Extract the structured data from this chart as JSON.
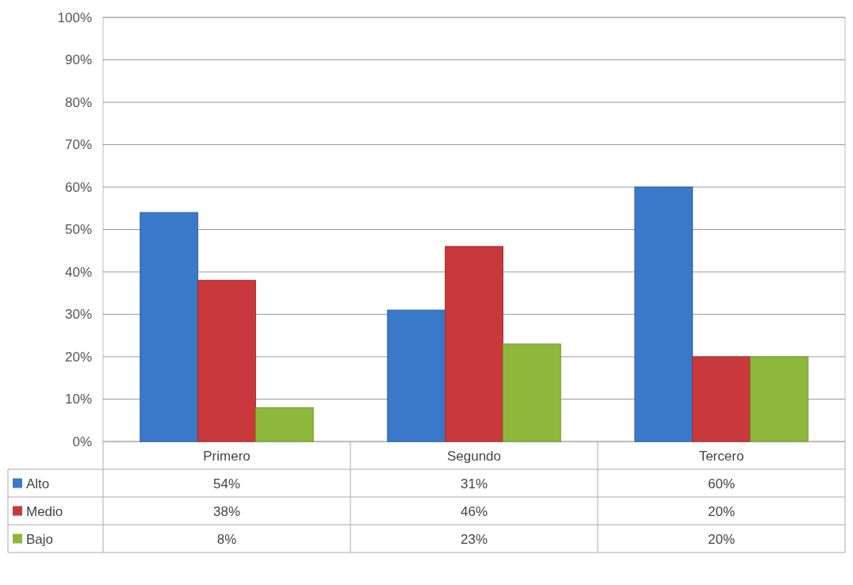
{
  "chart_data": {
    "type": "bar",
    "categories": [
      "Primero",
      "Segundo",
      "Tercero"
    ],
    "series": [
      {
        "name": "Alto",
        "color": "#3a78c9",
        "values": [
          54,
          31,
          60
        ]
      },
      {
        "name": "Medio",
        "color": "#c9383a",
        "values": [
          38,
          46,
          20
        ]
      },
      {
        "name": "Bajo",
        "color": "#8db83c",
        "values": [
          8,
          23,
          20
        ]
      }
    ],
    "value_labels": [
      [
        "54%",
        "31%",
        "60%"
      ],
      [
        "38%",
        "46%",
        "20%"
      ],
      [
        "8%",
        "23%",
        "20%"
      ]
    ],
    "ylim": [
      0,
      100
    ],
    "yticks": [
      {
        "value": 0,
        "label": "0%"
      },
      {
        "value": 10,
        "label": "10%"
      },
      {
        "value": 20,
        "label": "20%"
      },
      {
        "value": 30,
        "label": "30%"
      },
      {
        "value": 40,
        "label": "40%"
      },
      {
        "value": 50,
        "label": "50%"
      },
      {
        "value": 60,
        "label": "60%"
      },
      {
        "value": 70,
        "label": "70%"
      },
      {
        "value": 80,
        "label": "80%"
      },
      {
        "value": 90,
        "label": "90%"
      },
      {
        "value": 100,
        "label": "100%"
      }
    ],
    "grid": "y",
    "legend": "bottom"
  }
}
